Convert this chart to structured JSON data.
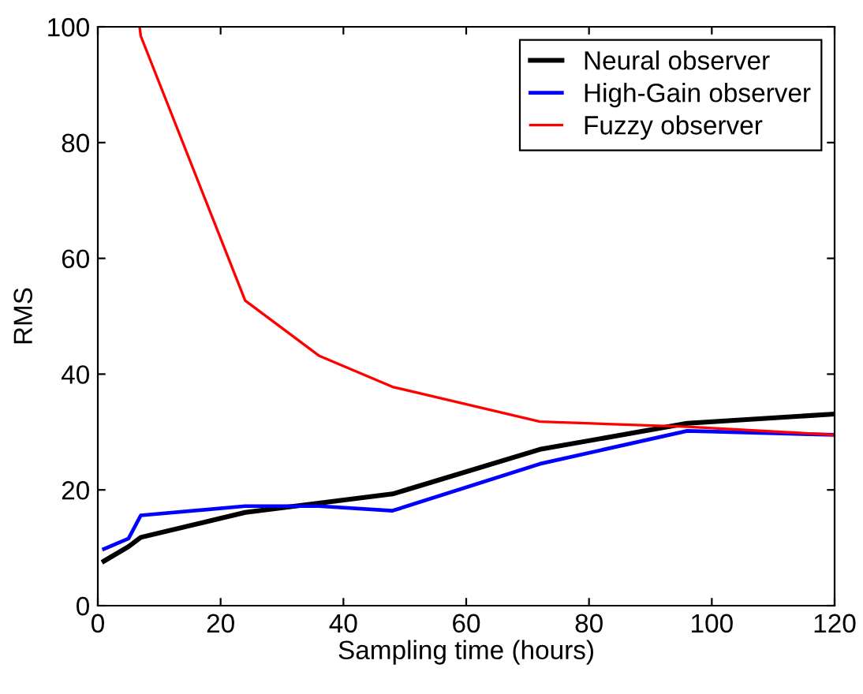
{
  "chart_data": {
    "type": "line",
    "xlabel": "Sampling time (hours)",
    "ylabel": "RMS",
    "xlim": [
      0,
      120
    ],
    "ylim": [
      0,
      100
    ],
    "xticks": [
      0,
      20,
      40,
      60,
      80,
      100,
      120
    ],
    "yticks": [
      0,
      20,
      40,
      60,
      80,
      100
    ],
    "grid": false,
    "legend": "top right",
    "marker": "none",
    "line_style": "solid",
    "series": [
      {
        "name": "Neural observer",
        "color": "#000000",
        "x": [
          1,
          5,
          7,
          24,
          48,
          72,
          96,
          120
        ],
        "values": [
          7.7,
          10.2,
          11.8,
          16.1,
          19.3,
          27.0,
          31.5,
          33.1
        ]
      },
      {
        "name": "High-Gain observer",
        "color": "#0000ff",
        "x": [
          1,
          5,
          7,
          24,
          36,
          48,
          72,
          96,
          120
        ],
        "values": [
          9.8,
          11.6,
          15.6,
          17.2,
          17.2,
          16.4,
          24.5,
          30.2,
          29.5
        ]
      },
      {
        "name": "Fuzzy observer",
        "color": "#ff0000",
        "x": [
          6.8,
          7,
          24,
          36,
          48,
          72,
          96,
          120
        ],
        "values": [
          100,
          98.4,
          52.7,
          43.2,
          37.8,
          31.8,
          30.9,
          29.5
        ]
      }
    ]
  }
}
